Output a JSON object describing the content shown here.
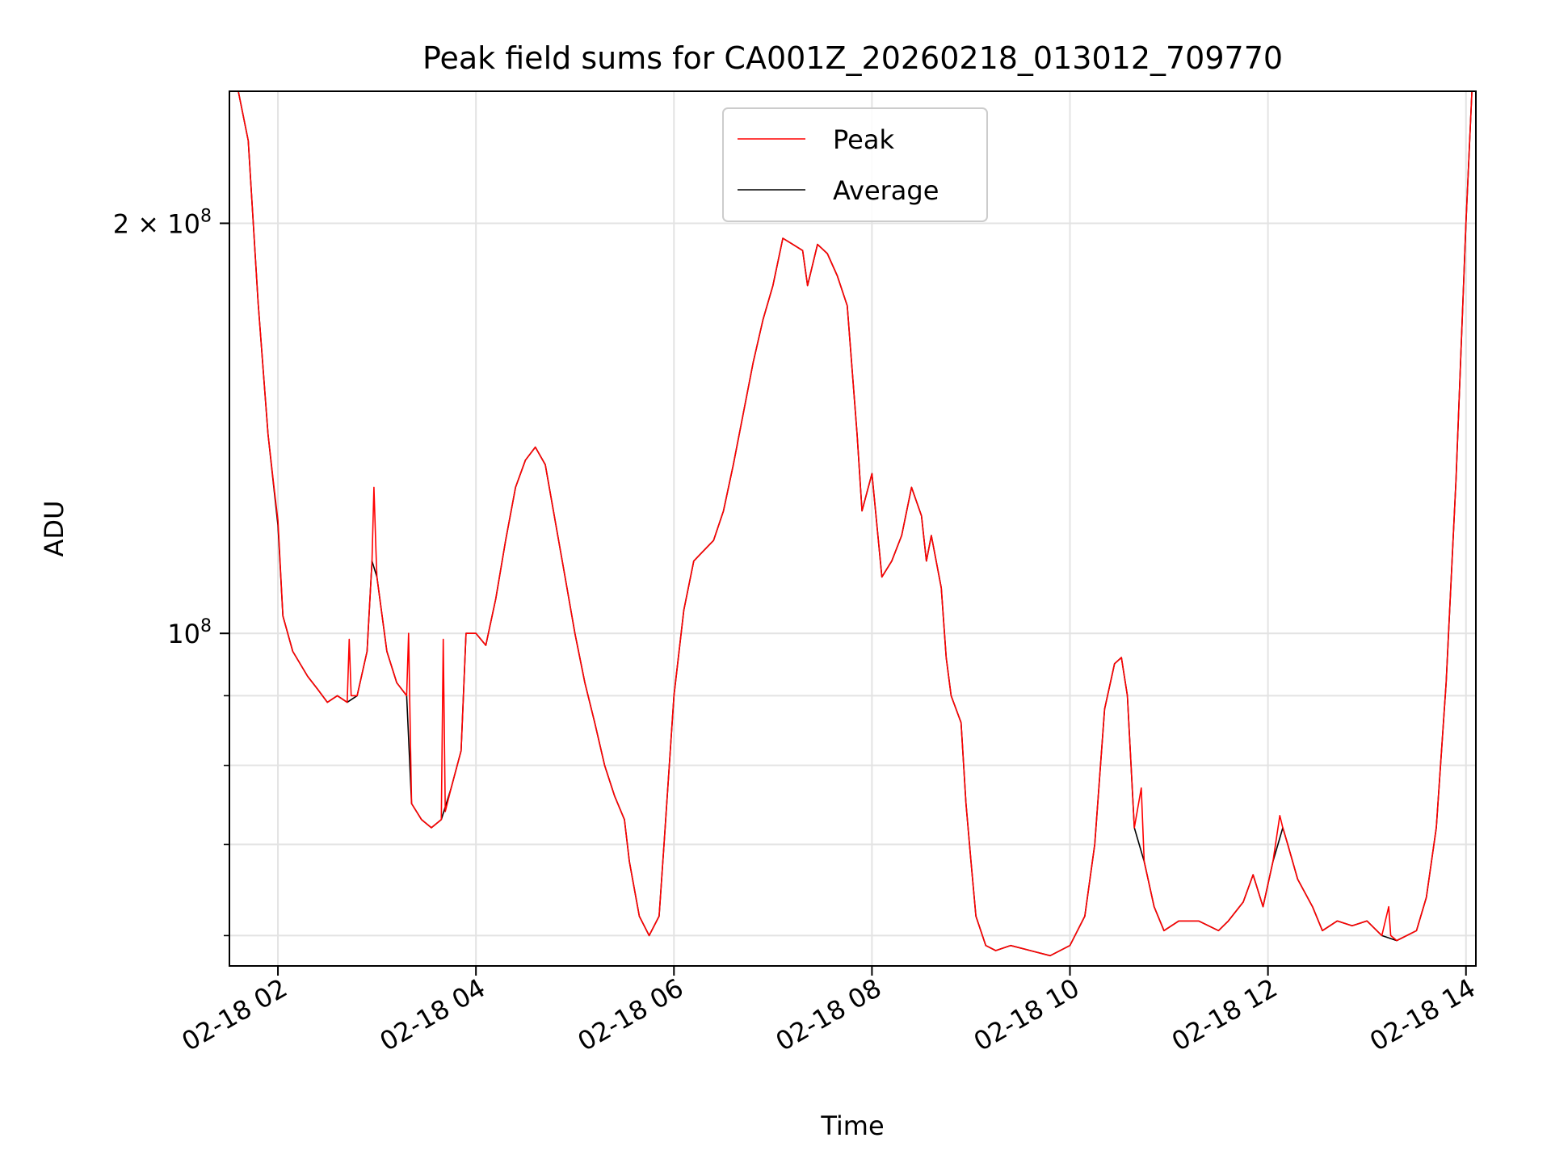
{
  "chart_data": {
    "type": "line",
    "title": "Peak field sums for CA001Z_20260218_013012_709770",
    "xlabel": "Time",
    "ylabel": "ADU",
    "yscale": "log",
    "ylim": [
      57000000,
      250000000
    ],
    "xlim_hours": [
      1.51,
      14.1
    ],
    "grid": true,
    "legend": {
      "location": "upper-center",
      "entries": [
        "Peak",
        "Average"
      ]
    },
    "x_ticks": [
      {
        "hour": 2,
        "label": "02-18 02"
      },
      {
        "hour": 4,
        "label": "02-18 04"
      },
      {
        "hour": 6,
        "label": "02-18 06"
      },
      {
        "hour": 8,
        "label": "02-18 08"
      },
      {
        "hour": 10,
        "label": "02-18 10"
      },
      {
        "hour": 12,
        "label": "02-18 12"
      },
      {
        "hour": 14,
        "label": "02-18 14"
      }
    ],
    "y_major_ticks": [
      {
        "value": 100000000,
        "base": "10",
        "exp": "8",
        "coef": ""
      },
      {
        "value": 200000000,
        "base": "10",
        "exp": "8",
        "coef": "2 × "
      }
    ],
    "y_minor_ticks": [
      60000000,
      70000000,
      80000000,
      90000000
    ],
    "series": [
      {
        "name": "Average",
        "color": "#000000",
        "points": [
          [
            1.6,
            250000000
          ],
          [
            1.7,
            230000000
          ],
          [
            1.8,
            175000000
          ],
          [
            1.9,
            140000000
          ],
          [
            2.0,
            120000000
          ],
          [
            2.05,
            103000000
          ],
          [
            2.15,
            97000000
          ],
          [
            2.3,
            93000000
          ],
          [
            2.4,
            91000000
          ],
          [
            2.5,
            89000000
          ],
          [
            2.6,
            90000000
          ],
          [
            2.7,
            89000000
          ],
          [
            2.8,
            90000000
          ],
          [
            2.9,
            97000000
          ],
          [
            2.95,
            113000000
          ],
          [
            3.0,
            110000000
          ],
          [
            3.1,
            97000000
          ],
          [
            3.2,
            92000000
          ],
          [
            3.3,
            90000000
          ],
          [
            3.35,
            75000000
          ],
          [
            3.45,
            73000000
          ],
          [
            3.55,
            72000000
          ],
          [
            3.65,
            73000000
          ],
          [
            3.75,
            77000000
          ],
          [
            3.85,
            82000000
          ],
          [
            3.9,
            100000000
          ],
          [
            4.0,
            100000000
          ],
          [
            4.1,
            98000000
          ],
          [
            4.2,
            106000000
          ],
          [
            4.3,
            117000000
          ],
          [
            4.4,
            128000000
          ],
          [
            4.5,
            134000000
          ],
          [
            4.6,
            137000000
          ],
          [
            4.7,
            133000000
          ],
          [
            4.8,
            121000000
          ],
          [
            4.9,
            110000000
          ],
          [
            5.0,
            100000000
          ],
          [
            5.1,
            92000000
          ],
          [
            5.2,
            86000000
          ],
          [
            5.3,
            80000000
          ],
          [
            5.4,
            76000000
          ],
          [
            5.5,
            73000000
          ],
          [
            5.55,
            68000000
          ],
          [
            5.65,
            62000000
          ],
          [
            5.75,
            60000000
          ],
          [
            5.85,
            62000000
          ],
          [
            5.9,
            70000000
          ],
          [
            6.0,
            90000000
          ],
          [
            6.1,
            104000000
          ],
          [
            6.2,
            113000000
          ],
          [
            6.3,
            115000000
          ],
          [
            6.4,
            117000000
          ],
          [
            6.5,
            123000000
          ],
          [
            6.6,
            133000000
          ],
          [
            6.7,
            145000000
          ],
          [
            6.8,
            158000000
          ],
          [
            6.9,
            170000000
          ],
          [
            7.0,
            180000000
          ],
          [
            7.1,
            195000000
          ],
          [
            7.2,
            193000000
          ],
          [
            7.3,
            191000000
          ],
          [
            7.35,
            180000000
          ],
          [
            7.45,
            193000000
          ],
          [
            7.55,
            190000000
          ],
          [
            7.65,
            183000000
          ],
          [
            7.75,
            174000000
          ],
          [
            7.85,
            140000000
          ],
          [
            7.9,
            123000000
          ],
          [
            8.0,
            131000000
          ],
          [
            8.1,
            110000000
          ],
          [
            8.2,
            113000000
          ],
          [
            8.3,
            118000000
          ],
          [
            8.4,
            128000000
          ],
          [
            8.5,
            122000000
          ],
          [
            8.55,
            113000000
          ],
          [
            8.6,
            118000000
          ],
          [
            8.7,
            108000000
          ],
          [
            8.75,
            96000000
          ],
          [
            8.8,
            90000000
          ],
          [
            8.9,
            86000000
          ],
          [
            8.95,
            75000000
          ],
          [
            9.0,
            68000000
          ],
          [
            9.05,
            62000000
          ],
          [
            9.15,
            59000000
          ],
          [
            9.25,
            58500000
          ],
          [
            9.4,
            59000000
          ],
          [
            9.6,
            58500000
          ],
          [
            9.8,
            58000000
          ],
          [
            10.0,
            59000000
          ],
          [
            10.15,
            62000000
          ],
          [
            10.25,
            70000000
          ],
          [
            10.35,
            88000000
          ],
          [
            10.45,
            95000000
          ],
          [
            10.52,
            96000000
          ],
          [
            10.58,
            90000000
          ],
          [
            10.65,
            72000000
          ],
          [
            10.75,
            68000000
          ],
          [
            10.85,
            63000000
          ],
          [
            10.95,
            60500000
          ],
          [
            11.1,
            61500000
          ],
          [
            11.3,
            61500000
          ],
          [
            11.5,
            60500000
          ],
          [
            11.6,
            61500000
          ],
          [
            11.75,
            63500000
          ],
          [
            11.85,
            66500000
          ],
          [
            11.95,
            63000000
          ],
          [
            12.05,
            68000000
          ],
          [
            12.15,
            72000000
          ],
          [
            12.2,
            70000000
          ],
          [
            12.3,
            66000000
          ],
          [
            12.45,
            63000000
          ],
          [
            12.55,
            60500000
          ],
          [
            12.7,
            61500000
          ],
          [
            12.85,
            61000000
          ],
          [
            13.0,
            61500000
          ],
          [
            13.15,
            60000000
          ],
          [
            13.3,
            59500000
          ],
          [
            13.5,
            60500000
          ],
          [
            13.6,
            64000000
          ],
          [
            13.7,
            72000000
          ],
          [
            13.8,
            92000000
          ],
          [
            13.9,
            130000000
          ],
          [
            14.0,
            200000000
          ],
          [
            14.06,
            250000000
          ]
        ]
      },
      {
        "name": "Peak",
        "color": "#ff0000",
        "points": [
          [
            1.6,
            250000000
          ],
          [
            1.7,
            230000000
          ],
          [
            1.8,
            175000000
          ],
          [
            1.9,
            140000000
          ],
          [
            1.96,
            128000000
          ],
          [
            2.0,
            121000000
          ],
          [
            2.05,
            103000000
          ],
          [
            2.15,
            97000000
          ],
          [
            2.3,
            93000000
          ],
          [
            2.4,
            91000000
          ],
          [
            2.5,
            89000000
          ],
          [
            2.6,
            90000000
          ],
          [
            2.7,
            89000000
          ],
          [
            2.72,
            99000000
          ],
          [
            2.74,
            90000000
          ],
          [
            2.8,
            90000000
          ],
          [
            2.9,
            97000000
          ],
          [
            2.95,
            113000000
          ],
          [
            2.97,
            128000000
          ],
          [
            2.99,
            115000000
          ],
          [
            3.0,
            110000000
          ],
          [
            3.1,
            97000000
          ],
          [
            3.2,
            92000000
          ],
          [
            3.3,
            90000000
          ],
          [
            3.32,
            100000000
          ],
          [
            3.34,
            82000000
          ],
          [
            3.35,
            75000000
          ],
          [
            3.45,
            73000000
          ],
          [
            3.55,
            72000000
          ],
          [
            3.65,
            73000000
          ],
          [
            3.67,
            99000000
          ],
          [
            3.69,
            74000000
          ],
          [
            3.75,
            77000000
          ],
          [
            3.85,
            82000000
          ],
          [
            3.9,
            100000000
          ],
          [
            4.0,
            100000000
          ],
          [
            4.1,
            98000000
          ],
          [
            4.2,
            106000000
          ],
          [
            4.3,
            117000000
          ],
          [
            4.4,
            128000000
          ],
          [
            4.5,
            134000000
          ],
          [
            4.6,
            137000000
          ],
          [
            4.7,
            133000000
          ],
          [
            4.8,
            121000000
          ],
          [
            4.9,
            110000000
          ],
          [
            5.0,
            100000000
          ],
          [
            5.1,
            92000000
          ],
          [
            5.2,
            86000000
          ],
          [
            5.3,
            80000000
          ],
          [
            5.4,
            76000000
          ],
          [
            5.5,
            73000000
          ],
          [
            5.55,
            68000000
          ],
          [
            5.65,
            62000000
          ],
          [
            5.75,
            60000000
          ],
          [
            5.85,
            62000000
          ],
          [
            5.9,
            70000000
          ],
          [
            6.0,
            90000000
          ],
          [
            6.1,
            104000000
          ],
          [
            6.2,
            113000000
          ],
          [
            6.3,
            115000000
          ],
          [
            6.4,
            117000000
          ],
          [
            6.5,
            123000000
          ],
          [
            6.6,
            133000000
          ],
          [
            6.7,
            145000000
          ],
          [
            6.8,
            158000000
          ],
          [
            6.9,
            170000000
          ],
          [
            7.0,
            180000000
          ],
          [
            7.1,
            195000000
          ],
          [
            7.2,
            193000000
          ],
          [
            7.3,
            191000000
          ],
          [
            7.35,
            180000000
          ],
          [
            7.45,
            193000000
          ],
          [
            7.55,
            190000000
          ],
          [
            7.65,
            183000000
          ],
          [
            7.75,
            174000000
          ],
          [
            7.85,
            140000000
          ],
          [
            7.9,
            123000000
          ],
          [
            8.0,
            131000000
          ],
          [
            8.1,
            110000000
          ],
          [
            8.2,
            113000000
          ],
          [
            8.3,
            118000000
          ],
          [
            8.4,
            128000000
          ],
          [
            8.5,
            122000000
          ],
          [
            8.55,
            113000000
          ],
          [
            8.6,
            118000000
          ],
          [
            8.7,
            108000000
          ],
          [
            8.75,
            96000000
          ],
          [
            8.8,
            90000000
          ],
          [
            8.9,
            86000000
          ],
          [
            8.95,
            75000000
          ],
          [
            9.0,
            68000000
          ],
          [
            9.05,
            62000000
          ],
          [
            9.15,
            59000000
          ],
          [
            9.25,
            58500000
          ],
          [
            9.4,
            59000000
          ],
          [
            9.6,
            58500000
          ],
          [
            9.8,
            58000000
          ],
          [
            10.0,
            59000000
          ],
          [
            10.15,
            62000000
          ],
          [
            10.25,
            70000000
          ],
          [
            10.35,
            88000000
          ],
          [
            10.45,
            95000000
          ],
          [
            10.52,
            96000000
          ],
          [
            10.58,
            90000000
          ],
          [
            10.65,
            72000000
          ],
          [
            10.72,
            77000000
          ],
          [
            10.75,
            68000000
          ],
          [
            10.85,
            63000000
          ],
          [
            10.95,
            60500000
          ],
          [
            11.1,
            61500000
          ],
          [
            11.3,
            61500000
          ],
          [
            11.5,
            60500000
          ],
          [
            11.6,
            61500000
          ],
          [
            11.75,
            63500000
          ],
          [
            11.85,
            66500000
          ],
          [
            11.95,
            63000000
          ],
          [
            12.05,
            68000000
          ],
          [
            12.12,
            73500000
          ],
          [
            12.15,
            72000000
          ],
          [
            12.2,
            70000000
          ],
          [
            12.3,
            66000000
          ],
          [
            12.45,
            63000000
          ],
          [
            12.55,
            60500000
          ],
          [
            12.7,
            61500000
          ],
          [
            12.85,
            61000000
          ],
          [
            13.0,
            61500000
          ],
          [
            13.15,
            60000000
          ],
          [
            13.22,
            63000000
          ],
          [
            13.24,
            60000000
          ],
          [
            13.3,
            59500000
          ],
          [
            13.5,
            60500000
          ],
          [
            13.6,
            64000000
          ],
          [
            13.7,
            72000000
          ],
          [
            13.8,
            92000000
          ],
          [
            13.9,
            130000000
          ],
          [
            14.0,
            200000000
          ],
          [
            14.06,
            250000000
          ]
        ]
      }
    ]
  }
}
